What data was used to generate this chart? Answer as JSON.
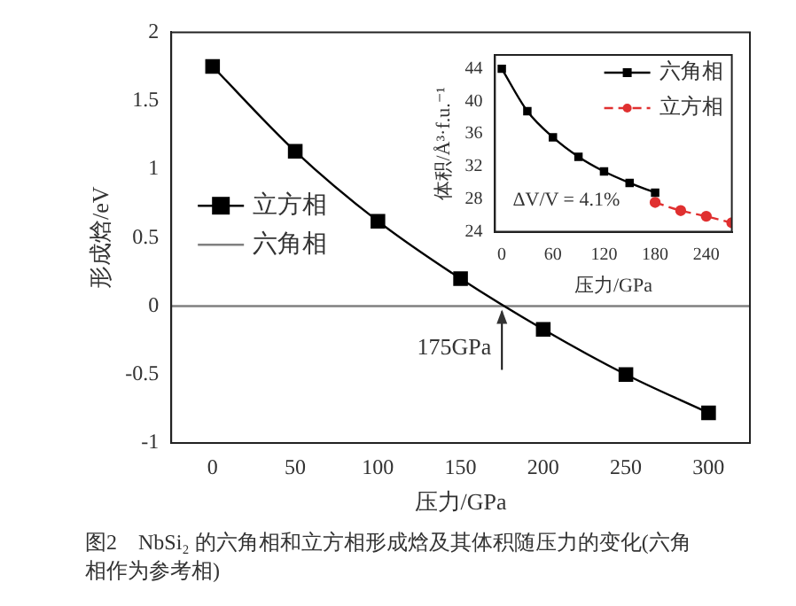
{
  "chart_data": [
    {
      "type": "line",
      "xlabel": "压力/GPa",
      "ylabel": "形成焓/eV",
      "xlim": [
        -25,
        325
      ],
      "ylim": [
        -1,
        2
      ],
      "xticks": [
        0,
        50,
        100,
        150,
        200,
        250,
        300
      ],
      "yticks": [
        -1,
        -0.5,
        0,
        0.5,
        1,
        1.5,
        2
      ],
      "grid": false,
      "legend": "left",
      "series": [
        {
          "name": "立方相",
          "color": "#000000",
          "marker": "square",
          "x": [
            0,
            50,
            100,
            150,
            200,
            250,
            300
          ],
          "values": [
            1.75,
            1.13,
            0.62,
            0.2,
            -0.17,
            -0.5,
            -0.78
          ]
        },
        {
          "name": "六角相",
          "color": "#808080",
          "marker": "none",
          "x": [
            -25,
            325
          ],
          "values": [
            0,
            0
          ]
        }
      ],
      "annotations": [
        {
          "text": "175GPa",
          "x": 175,
          "y": 0
        },
        "图2　NbSi₂ 的六角相和立方相形成焓及其体积随压力的变化(六角相作为参考相)"
      ]
    },
    {
      "type": "line",
      "xlabel": "压力/GPa",
      "ylabel": "体积/Å³·f.u.⁻¹",
      "xlim": [
        -8,
        270
      ],
      "ylim": [
        24,
        45.7
      ],
      "xticks": [
        0,
        60,
        120,
        180,
        240
      ],
      "yticks": [
        24,
        28,
        32,
        36,
        40,
        44
      ],
      "grid": false,
      "legend": "top right",
      "series": [
        {
          "name": "六角相",
          "color": "#000000",
          "marker": "square",
          "line_style": "solid",
          "x": [
            0,
            30,
            60,
            90,
            120,
            150,
            180
          ],
          "values": [
            44,
            38.8,
            35.6,
            33.2,
            31.4,
            30,
            28.8
          ]
        },
        {
          "name": "立方相",
          "color": "#e03030",
          "marker": "circle",
          "line_style": "dashed",
          "x": [
            180,
            210,
            240,
            270
          ],
          "values": [
            27.6,
            26.6,
            25.9,
            25.1
          ]
        }
      ],
      "annotations": [
        "ΔV/V = 4.1%"
      ]
    }
  ]
}
